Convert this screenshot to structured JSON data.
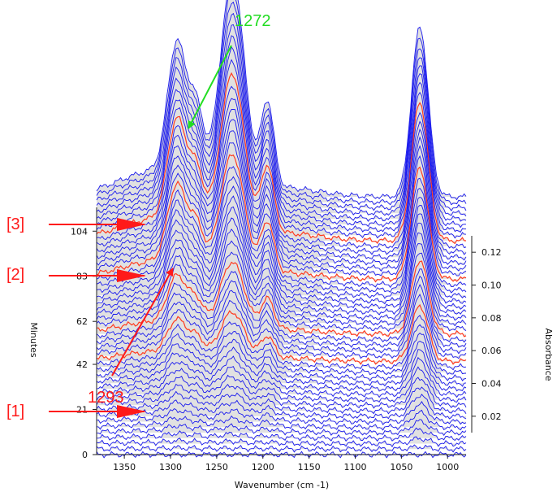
{
  "chart_data": {
    "type": "line",
    "style": "waterfall-3d",
    "title": "",
    "xlabel": "Wavenumber (cm -1)",
    "ylabel": "Minutes",
    "zlabel": "Absorbance",
    "xlim": [
      1380,
      980
    ],
    "ylim": [
      0,
      120
    ],
    "zlim": [
      0.01,
      0.13
    ],
    "x_ticks": [
      "1350",
      "1300",
      "1250",
      "1200",
      "1150",
      "1100",
      "1050",
      "1000"
    ],
    "x_tick_values": [
      1350,
      1300,
      1250,
      1200,
      1150,
      1100,
      1050,
      1000
    ],
    "y_ticks": [
      "0",
      "21",
      "42",
      "62",
      "83",
      "104"
    ],
    "y_tick_values": [
      0,
      21,
      42,
      62,
      83,
      104
    ],
    "z_ticks": [
      "0.02",
      "0.04",
      "0.06",
      "0.08",
      "0.10",
      "0.12"
    ],
    "z_tick_values": [
      0.02,
      0.04,
      0.06,
      0.08,
      0.1,
      0.12
    ],
    "series_color": "#1a1aee",
    "highlight_color": "#ff3b1f",
    "fill_color": "#a8a8a8",
    "trace_count": 48,
    "highlighted_minutes": [
      43,
      57,
      82,
      100
    ],
    "peaks": [
      {
        "wavenumber": 1293,
        "max_height": 0.29
      },
      {
        "wavenumber": 1272,
        "max_height": 0.15
      },
      {
        "wavenumber": 1233,
        "max_height": 0.47
      },
      {
        "wavenumber": 1195,
        "max_height": 0.19
      },
      {
        "wavenumber": 1030,
        "max_height": 0.38
      }
    ],
    "annotations": [
      {
        "text": "1272",
        "color": "#22dd22"
      },
      {
        "text": "1293",
        "color": "#ff1a1a"
      },
      {
        "text": "[3]",
        "color": "#ff1a1a"
      },
      {
        "text": "[2]",
        "color": "#ff1a1a"
      },
      {
        "text": "[1]",
        "color": "#ff1a1a"
      }
    ]
  }
}
